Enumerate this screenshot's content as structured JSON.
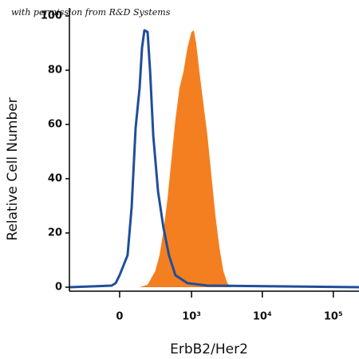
{
  "chart_data": {
    "type": "histogram-overlay",
    "watermark": "with permission from R&D Systems",
    "xlabel": "ErbB2/Her2",
    "ylabel": "Relative Cell Number",
    "xscale": "asinh",
    "xlim": [
      -480,
      230000
    ],
    "xticks": [
      0,
      {
        "value": 1000,
        "label": "10³"
      },
      {
        "value": 10000,
        "label": "10⁴"
      },
      {
        "value": 100000,
        "label": "10⁵"
      }
    ],
    "ylim": [
      0,
      100
    ],
    "yticks": [
      0,
      20,
      40,
      60,
      80,
      100
    ],
    "series": [
      {
        "name": null,
        "style": "area",
        "color": "#f47f20",
        "x": [
          136,
          203,
          280,
          331,
          381,
          441,
          507,
          582,
          668,
          764,
          872,
          996,
          1078,
          1166,
          1296,
          1476,
          1684,
          1915,
          2181,
          2485,
          2830,
          3220,
          3665
        ],
        "values": [
          0,
          0.9,
          5.9,
          11.8,
          20.6,
          32.4,
          47.1,
          61.8,
          73.5,
          79.4,
          88.2,
          94.1,
          94.7,
          89.7,
          79.4,
          67.6,
          55.9,
          41.2,
          26.5,
          14.7,
          5.9,
          1.5,
          0
        ]
      },
      {
        "name": null,
        "style": "line",
        "color": "#1f4e9c",
        "x": [
          -480,
          -51,
          -25,
          0,
          51,
          78,
          106,
          136,
          155,
          175,
          203,
          227,
          259,
          312,
          381,
          466,
          582,
          872,
          1684,
          230000
        ],
        "values": [
          0,
          0.6,
          1.5,
          4.4,
          11.8,
          29.4,
          58.8,
          73.5,
          88.2,
          94.7,
          94.1,
          79.4,
          55.9,
          35.3,
          22.1,
          11.8,
          4.4,
          1.5,
          0.6,
          0
        ]
      }
    ]
  }
}
